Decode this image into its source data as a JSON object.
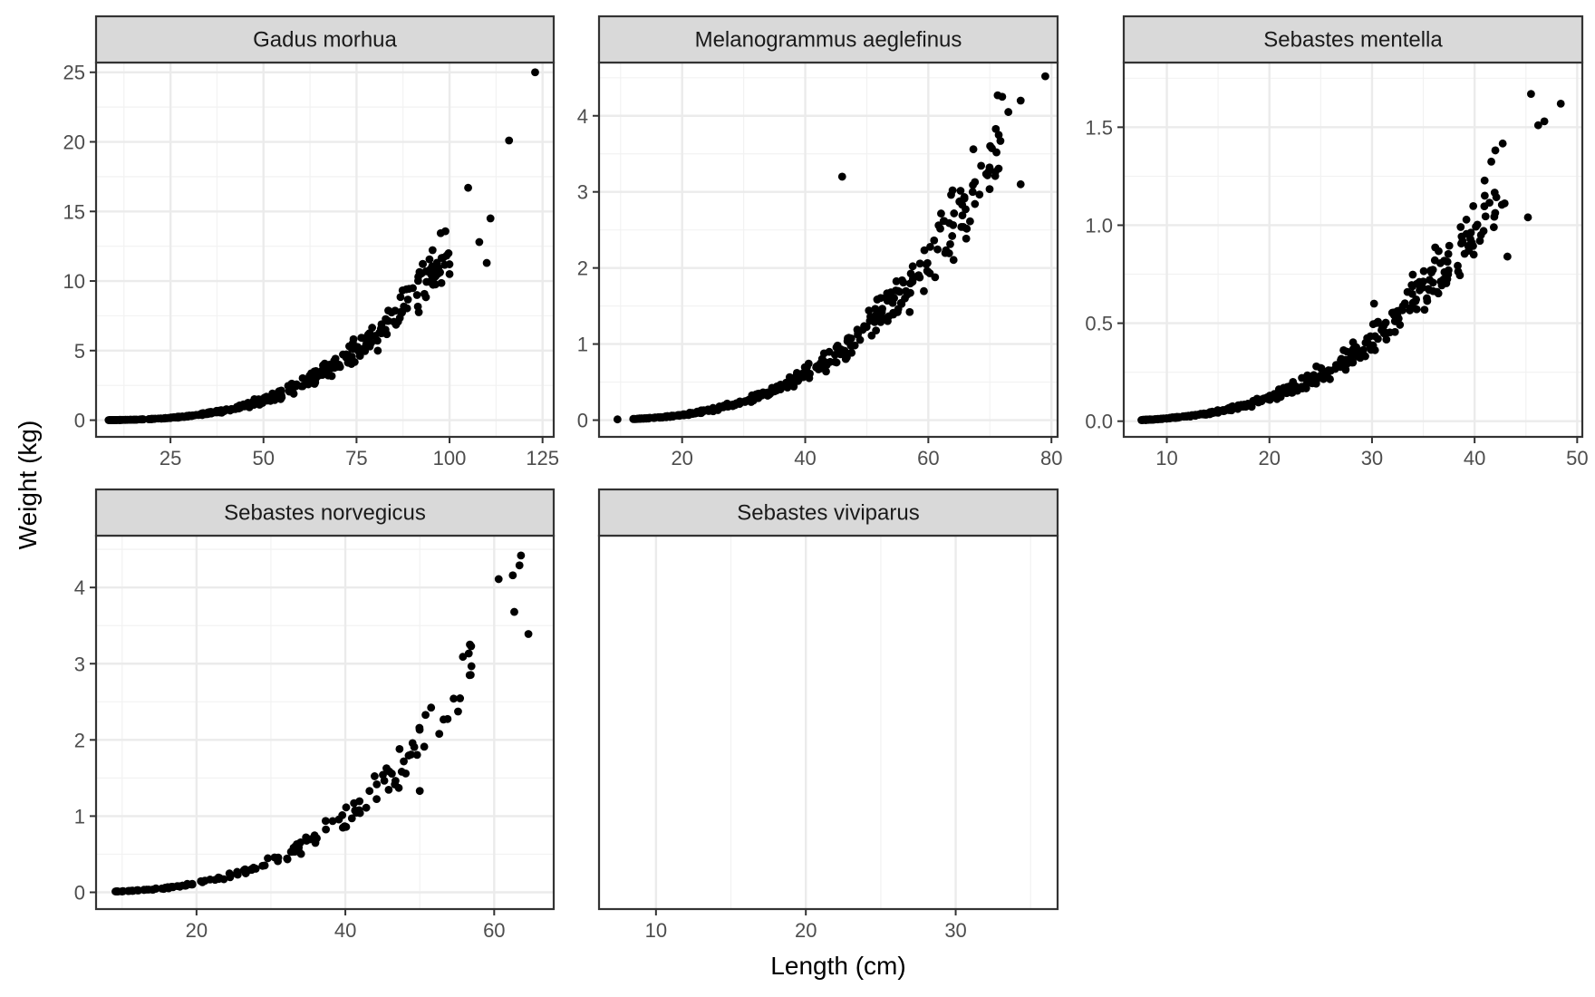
{
  "chart_data": {
    "type": "scatter",
    "layout": "facet_wrap",
    "xlabel": "Length (cm)",
    "ylabel": "Weight (kg)",
    "grid": true,
    "point_color": "#000000",
    "strip_fill": "#d9d9d9",
    "panel_border": "#333333",
    "panels": [
      {
        "name": "Gadus morhua",
        "xlim": [
          5,
          128
        ],
        "ylim": [
          -1.2,
          25.7
        ],
        "xticks": [
          25,
          50,
          75,
          100,
          125
        ],
        "yticks": [
          0,
          5,
          10,
          15,
          20,
          25
        ],
        "model": {
          "a": 8.5e-06,
          "b": 3.08
        },
        "generated": {
          "n": 420,
          "range": [
            8,
            100
          ],
          "seed": 11
        },
        "points": [
          [
            105,
            16.7
          ],
          [
            116,
            20.1
          ],
          [
            123,
            25.0
          ],
          [
            111,
            14.5
          ],
          [
            110,
            11.3
          ],
          [
            108,
            12.8
          ],
          [
            100,
            10.5
          ]
        ]
      },
      {
        "name": "Melanogrammus aeglefinus",
        "xlim": [
          6.5,
          81
        ],
        "ylim": [
          -0.22,
          4.7
        ],
        "xticks": [
          20,
          40,
          60,
          80
        ],
        "yticks": [
          0,
          1,
          2,
          3,
          4
        ],
        "model": {
          "a": 6.5e-06,
          "b": 3.1
        },
        "generated": {
          "n": 380,
          "range": [
            12,
            72
          ],
          "seed": 23
        },
        "points": [
          [
            9.5,
            0.01
          ],
          [
            46,
            3.2
          ],
          [
            79,
            4.52
          ],
          [
            75,
            3.1
          ],
          [
            72,
            4.25
          ],
          [
            75,
            4.2
          ],
          [
            73,
            4.05
          ]
        ]
      },
      {
        "name": "Sebastes mentella",
        "xlim": [
          5.8,
          50.5
        ],
        "ylim": [
          -0.08,
          1.83
        ],
        "xticks": [
          10,
          20,
          30,
          40,
          50
        ],
        "yticks": [
          0.0,
          0.5,
          1.0,
          1.5
        ],
        "ytick_labels": [
          "0.0",
          "0.5",
          "1.0",
          "1.5"
        ],
        "model": {
          "a": 1.18e-05,
          "b": 3.08
        },
        "generated": {
          "n": 380,
          "range": [
            7.5,
            43
          ],
          "seed": 37
        },
        "points": [
          [
            45.5,
            1.67
          ],
          [
            46.2,
            1.51
          ],
          [
            46.8,
            1.53
          ],
          [
            48.4,
            1.62
          ],
          [
            45.2,
            1.04
          ],
          [
            43.2,
            0.84
          ],
          [
            30.2,
            0.6
          ]
        ]
      },
      {
        "name": "Sebastes norvegicus",
        "xlim": [
          6.5,
          68
        ],
        "ylim": [
          -0.22,
          4.68
        ],
        "xticks": [
          20,
          40,
          60
        ],
        "yticks": [
          0,
          1,
          2,
          3,
          4
        ],
        "model": {
          "a": 1.25e-05,
          "b": 3.06
        },
        "generated": {
          "n": 160,
          "range": [
            9,
            57
          ],
          "seed": 53
        },
        "points": [
          [
            60.6,
            4.11
          ],
          [
            62.5,
            4.16
          ],
          [
            63.6,
            4.42
          ],
          [
            63.4,
            4.29
          ],
          [
            62.7,
            3.68
          ],
          [
            64.6,
            3.39
          ],
          [
            50.0,
            1.33
          ],
          [
            55.8,
            3.09
          ],
          [
            56.7,
            2.85
          ]
        ]
      },
      {
        "name": "Sebastes viviparus",
        "xlim": [
          6.2,
          36.8
        ],
        "ylim": [
          0,
          1
        ],
        "xticks": [
          10,
          20,
          30
        ],
        "yticks": [],
        "points": []
      }
    ]
  }
}
